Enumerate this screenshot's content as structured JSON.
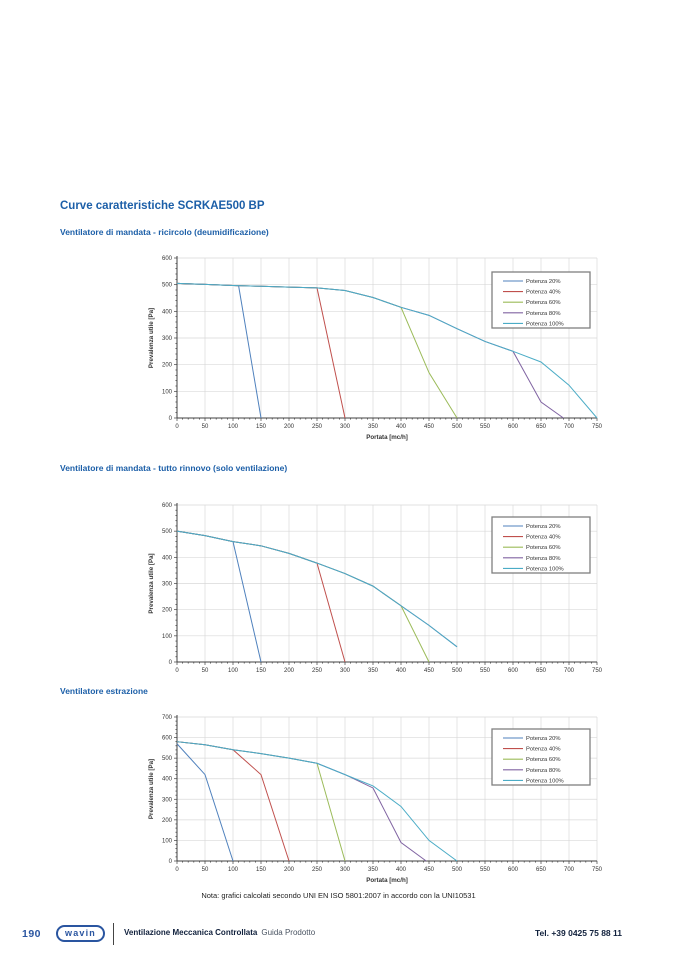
{
  "page": {
    "title": "Curve caratteristiche SCRKAE500 BP",
    "note": "Nota: grafici calcolati secondo UNI EN ISO 5801:2007 in accordo con la UNI10531"
  },
  "footer": {
    "page_number": "190",
    "logo_text": "wavin",
    "doc_title": "Ventilazione Meccanica Controllata",
    "doc_subtitle": "Guida Prodotto",
    "phone": "Tel. +39 0425 75 88 11"
  },
  "colors": {
    "accent_blue": "#1c5fa8",
    "grid": "#d9d9d9",
    "axis": "#404040",
    "tick_text": "#333333",
    "legend_border": "#7f7f7f"
  },
  "chart_data": [
    {
      "type": "line",
      "section_title": "Ventilatore di mandata - ricircolo (deumidificazione)",
      "xlabel": "Portata [mc/h]",
      "ylabel": "Prevalenza utile [Pa]",
      "xlim": [
        0,
        750
      ],
      "ylim": [
        0,
        600
      ],
      "x_major": 50,
      "x_minor": 10,
      "y_major": 100,
      "y_minor": 20,
      "grid": true,
      "legend_position": "top-right",
      "series": [
        {
          "name": "Potenza 20%",
          "color": "#4f81bd",
          "points": [
            [
              0,
              505
            ],
            [
              50,
              501
            ],
            [
              100,
              497
            ],
            [
              110,
              496
            ],
            [
              150,
              0
            ]
          ]
        },
        {
          "name": "Potenza 40%",
          "color": "#c0504d",
          "points": [
            [
              0,
              505
            ],
            [
              50,
              501
            ],
            [
              100,
              497
            ],
            [
              150,
              494
            ],
            [
              200,
              491
            ],
            [
              250,
              488
            ],
            [
              300,
              0
            ]
          ]
        },
        {
          "name": "Potenza 60%",
          "color": "#9bbb59",
          "points": [
            [
              0,
              505
            ],
            [
              50,
              501
            ],
            [
              100,
              497
            ],
            [
              150,
              494
            ],
            [
              200,
              491
            ],
            [
              250,
              488
            ],
            [
              300,
              478
            ],
            [
              350,
              452
            ],
            [
              400,
              415
            ],
            [
              450,
              170
            ],
            [
              500,
              0
            ]
          ]
        },
        {
          "name": "Potenza 80%",
          "color": "#8064a2",
          "points": [
            [
              0,
              505
            ],
            [
              50,
              501
            ],
            [
              100,
              497
            ],
            [
              150,
              494
            ],
            [
              200,
              491
            ],
            [
              250,
              488
            ],
            [
              300,
              478
            ],
            [
              350,
              452
            ],
            [
              400,
              415
            ],
            [
              450,
              385
            ],
            [
              500,
              335
            ],
            [
              550,
              287
            ],
            [
              600,
              250
            ],
            [
              650,
              60
            ],
            [
              690,
              0
            ]
          ]
        },
        {
          "name": "Potenza 100%",
          "color": "#4bacc6",
          "points": [
            [
              0,
              505
            ],
            [
              50,
              501
            ],
            [
              100,
              497
            ],
            [
              150,
              494
            ],
            [
              200,
              491
            ],
            [
              250,
              488
            ],
            [
              300,
              478
            ],
            [
              350,
              452
            ],
            [
              400,
              415
            ],
            [
              450,
              385
            ],
            [
              500,
              335
            ],
            [
              550,
              287
            ],
            [
              600,
              250
            ],
            [
              650,
              210
            ],
            [
              700,
              123
            ],
            [
              750,
              0
            ]
          ]
        }
      ]
    },
    {
      "type": "line",
      "section_title": "Ventilatore di mandata - tutto rinnovo (solo ventilazione)",
      "xlabel": "",
      "ylabel": "Prevalenza utile [Pa]",
      "xlim": [
        0,
        750
      ],
      "ylim": [
        0,
        600
      ],
      "x_major": 50,
      "x_minor": 10,
      "y_major": 100,
      "y_minor": 20,
      "grid": true,
      "legend_position": "top-right",
      "series": [
        {
          "name": "Potenza 20%",
          "color": "#4f81bd",
          "points": [
            [
              0,
              500
            ],
            [
              50,
              483
            ],
            [
              100,
              460
            ],
            [
              150,
              0
            ]
          ]
        },
        {
          "name": "Potenza 40%",
          "color": "#c0504d",
          "points": [
            [
              0,
              500
            ],
            [
              50,
              483
            ],
            [
              100,
              460
            ],
            [
              150,
              444
            ],
            [
              200,
              415
            ],
            [
              250,
              378
            ],
            [
              300,
              0
            ]
          ]
        },
        {
          "name": "Potenza 60%",
          "color": "#9bbb59",
          "points": [
            [
              0,
              500
            ],
            [
              50,
              483
            ],
            [
              100,
              460
            ],
            [
              150,
              444
            ],
            [
              200,
              415
            ],
            [
              250,
              378
            ],
            [
              300,
              338
            ],
            [
              350,
              290
            ],
            [
              400,
              215
            ],
            [
              450,
              0
            ]
          ]
        },
        {
          "name": "Potenza 80%",
          "color": "#8064a2",
          "points": [
            [
              0,
              500
            ],
            [
              50,
              483
            ],
            [
              100,
              460
            ],
            [
              150,
              444
            ],
            [
              200,
              415
            ],
            [
              250,
              378
            ],
            [
              300,
              338
            ],
            [
              350,
              290
            ],
            [
              400,
              215
            ],
            [
              450,
              140
            ],
            [
              500,
              58
            ]
          ]
        },
        {
          "name": "Potenza 100%",
          "color": "#4bacc6",
          "points": [
            [
              0,
              500
            ],
            [
              50,
              483
            ],
            [
              100,
              460
            ],
            [
              150,
              444
            ],
            [
              200,
              415
            ],
            [
              250,
              378
            ],
            [
              300,
              338
            ],
            [
              350,
              290
            ],
            [
              400,
              215
            ],
            [
              450,
              140
            ],
            [
              500,
              58
            ]
          ]
        }
      ]
    },
    {
      "type": "line",
      "section_title": "Ventilatore estrazione",
      "xlabel": "Portata [mc/h]",
      "ylabel": "Prevalenza utile [Pa]",
      "xlim": [
        0,
        750
      ],
      "ylim": [
        0,
        700
      ],
      "x_major": 50,
      "x_minor": 10,
      "y_major": 100,
      "y_minor": 20,
      "grid": true,
      "legend_position": "top-right",
      "series": [
        {
          "name": "Potenza 20%",
          "color": "#4f81bd",
          "points": [
            [
              0,
              570
            ],
            [
              50,
              420
            ],
            [
              100,
              0
            ]
          ]
        },
        {
          "name": "Potenza 40%",
          "color": "#c0504d",
          "points": [
            [
              0,
              580
            ],
            [
              50,
              565
            ],
            [
              100,
              541
            ],
            [
              150,
              420
            ],
            [
              200,
              0
            ]
          ]
        },
        {
          "name": "Potenza 60%",
          "color": "#9bbb59",
          "points": [
            [
              0,
              580
            ],
            [
              50,
              565
            ],
            [
              100,
              541
            ],
            [
              150,
              522
            ],
            [
              200,
              500
            ],
            [
              250,
              475
            ],
            [
              300,
              0
            ]
          ]
        },
        {
          "name": "Potenza 80%",
          "color": "#8064a2",
          "points": [
            [
              0,
              580
            ],
            [
              50,
              565
            ],
            [
              100,
              541
            ],
            [
              150,
              522
            ],
            [
              200,
              500
            ],
            [
              250,
              475
            ],
            [
              300,
              420
            ],
            [
              350,
              355
            ],
            [
              400,
              90
            ],
            [
              445,
              0
            ]
          ]
        },
        {
          "name": "Potenza 100%",
          "color": "#4bacc6",
          "points": [
            [
              0,
              580
            ],
            [
              50,
              565
            ],
            [
              100,
              541
            ],
            [
              150,
              522
            ],
            [
              200,
              500
            ],
            [
              250,
              475
            ],
            [
              300,
              420
            ],
            [
              350,
              365
            ],
            [
              400,
              265
            ],
            [
              450,
              100
            ],
            [
              500,
              0
            ]
          ]
        }
      ]
    }
  ]
}
